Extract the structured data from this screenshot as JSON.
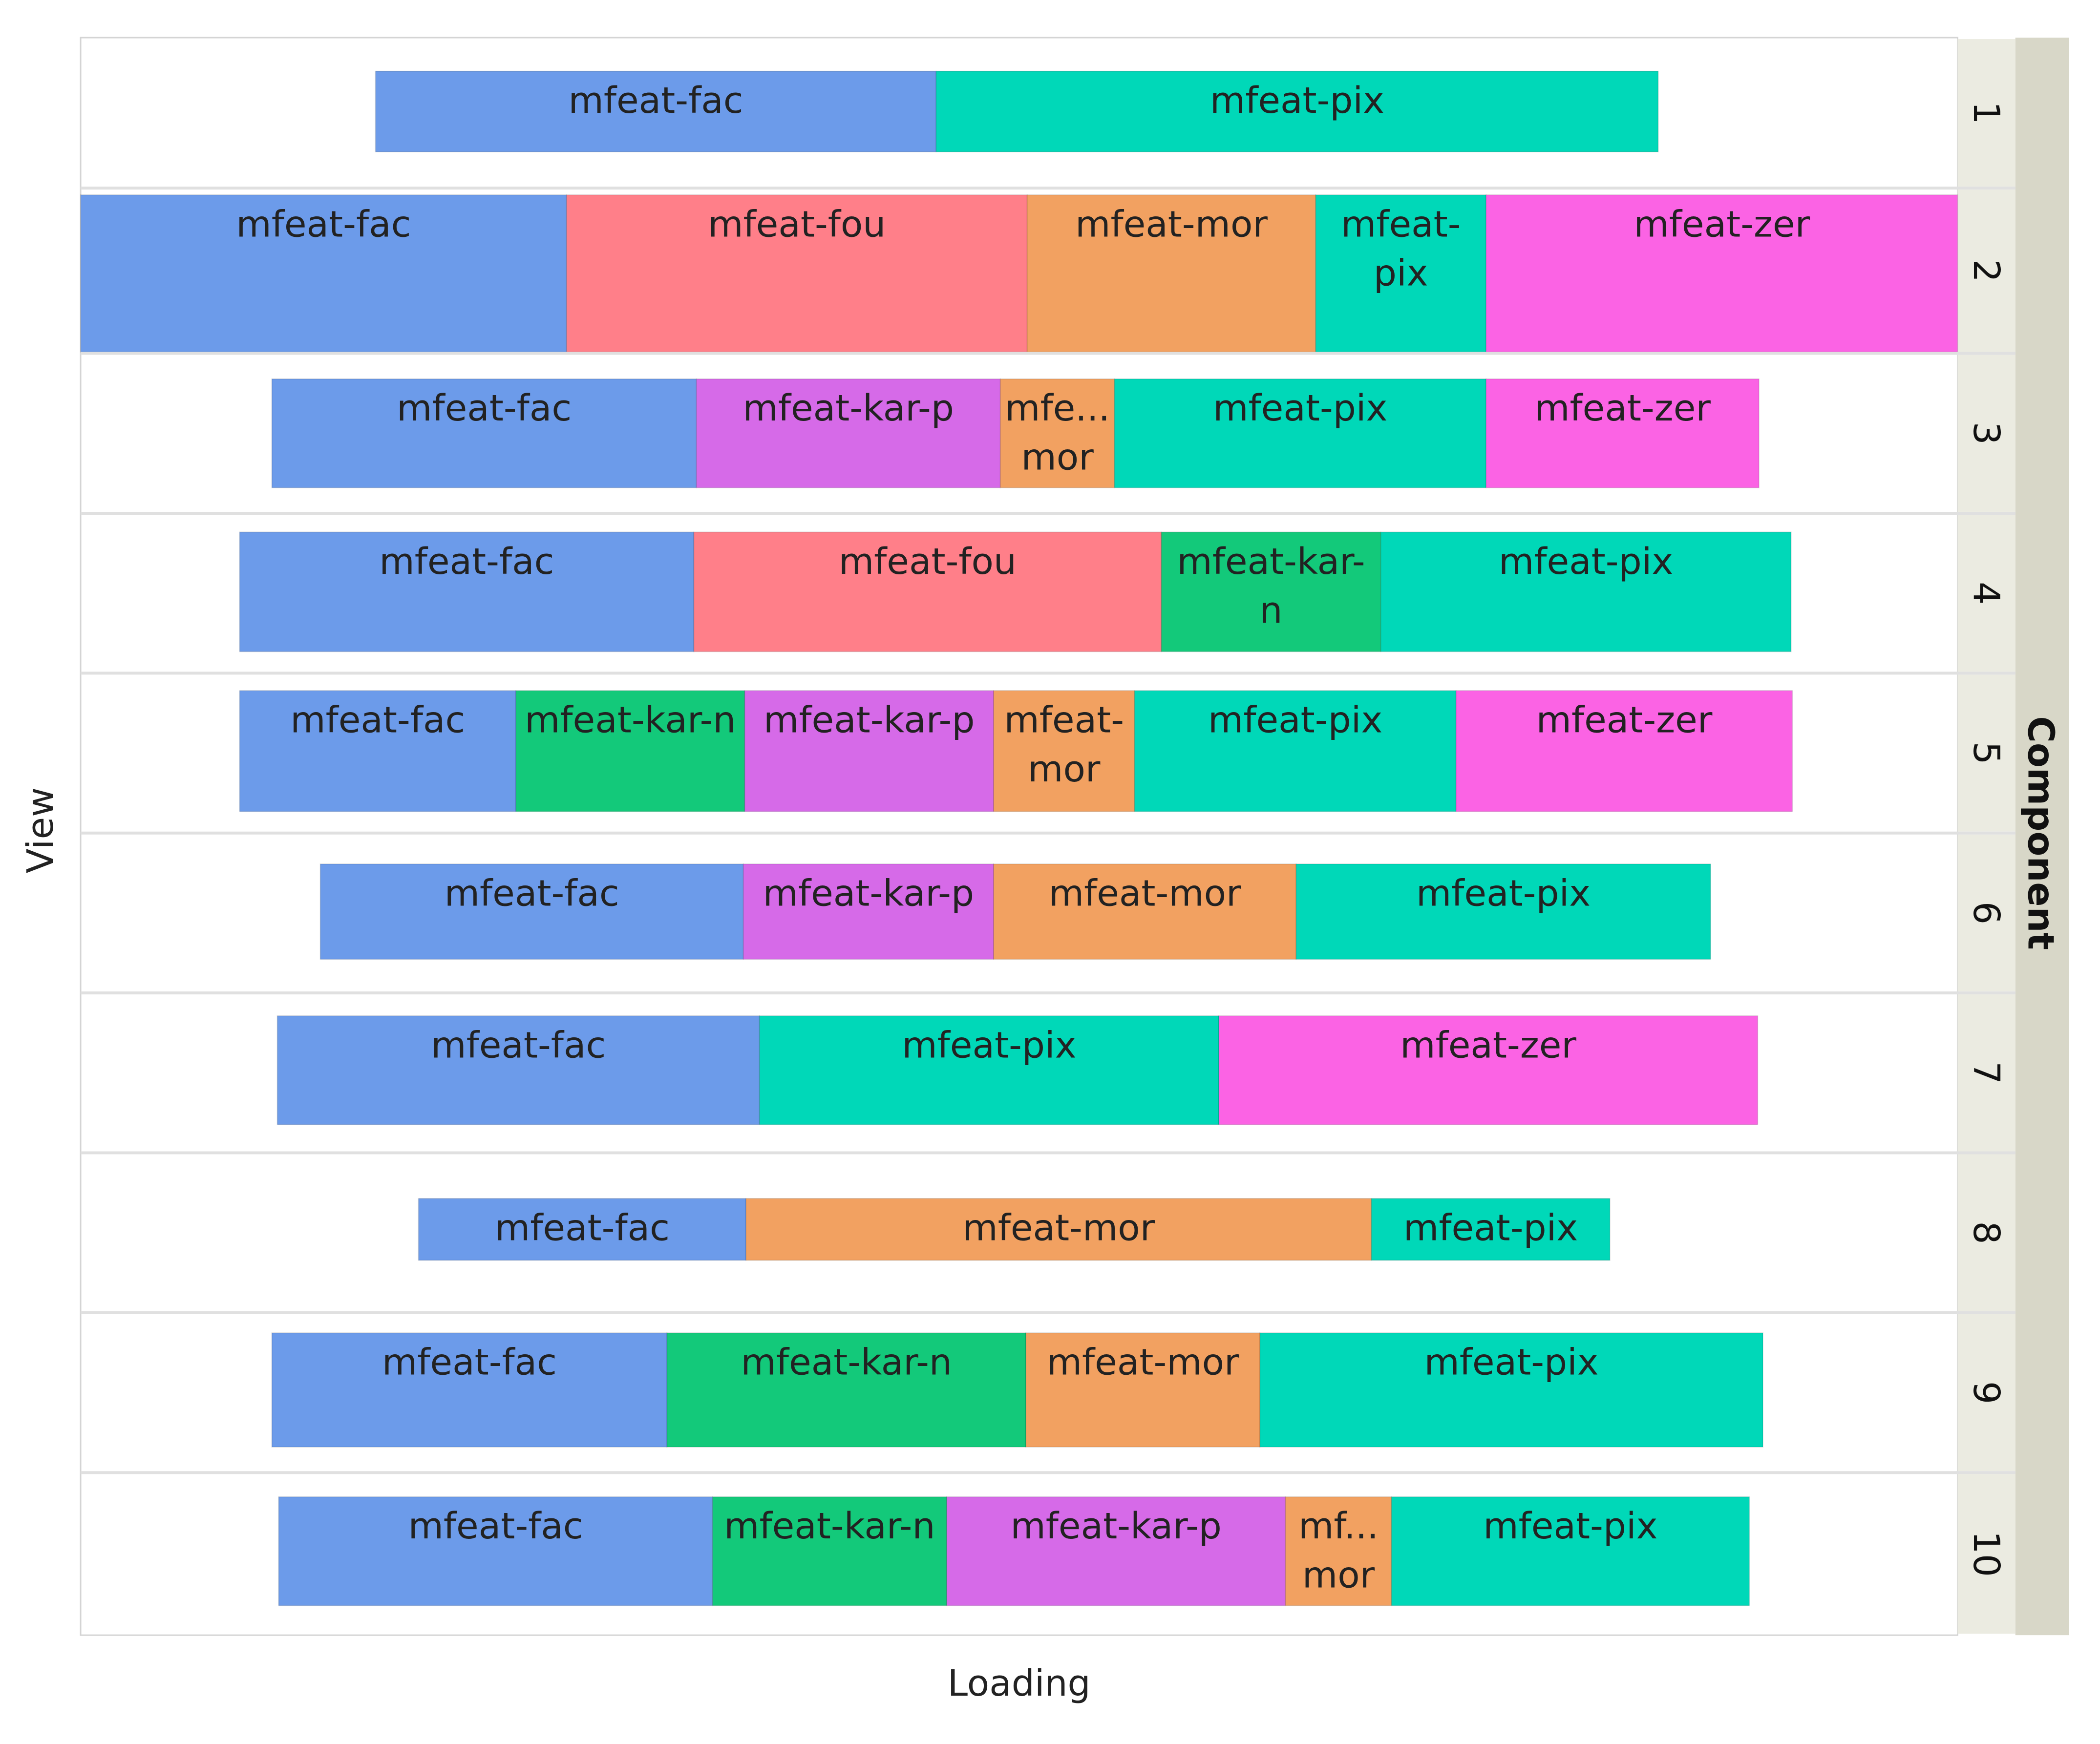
{
  "chart_data": {
    "type": "bar",
    "subtype": "horizontal-stacked-faceted",
    "xlabel": "Loading",
    "ylabel": "View",
    "facet_label": "Component",
    "facets": [
      "1",
      "2",
      "3",
      "4",
      "5",
      "6",
      "7",
      "8",
      "9",
      "10"
    ],
    "colors": {
      "mfeat-fac": "#6c9bea",
      "mfeat-fou": "#ff7f89",
      "mfeat-kar-n": "#13c97a",
      "mfeat-kar-p": "#d66ae8",
      "mfeat-mor": "#f2a161",
      "mfeat-pix": "#00d8b8",
      "mfeat-zer": "#fb63e4"
    },
    "rows": [
      {
        "component": "1",
        "segments": [
          {
            "view": "mfeat-fac",
            "label": "mfeat-fac",
            "start": 0.1571,
            "end": 0.4558
          },
          {
            "view": "mfeat-pix",
            "label": "mfeat-pix",
            "start": 0.4558,
            "end": 0.8405
          }
        ]
      },
      {
        "component": "2",
        "segments": [
          {
            "view": "mfeat-fac",
            "label": "mfeat-fac",
            "start": 0.0,
            "end": 0.2589
          },
          {
            "view": "mfeat-fou",
            "label": "mfeat-fou",
            "start": 0.2589,
            "end": 0.5043
          },
          {
            "view": "mfeat-mor",
            "label": "mfeat-mor",
            "start": 0.5043,
            "end": 0.658
          },
          {
            "view": "mfeat-pix",
            "label": [
              "mfeat-",
              "pix"
            ],
            "start": 0.658,
            "end": 0.7488
          },
          {
            "view": "mfeat-zer",
            "label": "mfeat-zer",
            "start": 0.7488,
            "end": 1.0
          }
        ]
      },
      {
        "component": "3",
        "segments": [
          {
            "view": "mfeat-fac",
            "label": "mfeat-fac",
            "start": 0.1019,
            "end": 0.3281
          },
          {
            "view": "mfeat-kar-p",
            "label": "mfeat-kar-p",
            "start": 0.3281,
            "end": 0.49
          },
          {
            "view": "mfeat-mor",
            "label": [
              "mfe...",
              "mor"
            ],
            "start": 0.49,
            "end": 0.5508
          },
          {
            "view": "mfeat-pix",
            "label": "mfeat-pix",
            "start": 0.5508,
            "end": 0.7488
          },
          {
            "view": "mfeat-zer",
            "label": "mfeat-zer",
            "start": 0.7488,
            "end": 0.8942
          }
        ]
      },
      {
        "component": "4",
        "segments": [
          {
            "view": "mfeat-fac",
            "label": "mfeat-fac",
            "start": 0.0847,
            "end": 0.3267
          },
          {
            "view": "mfeat-fou",
            "label": "mfeat-fou",
            "start": 0.3267,
            "end": 0.5758
          },
          {
            "view": "mfeat-kar-n",
            "label": [
              "mfeat-kar-",
              "n"
            ],
            "start": 0.5758,
            "end": 0.6927
          },
          {
            "view": "mfeat-pix",
            "label": "mfeat-pix",
            "start": 0.6927,
            "end": 0.9113
          }
        ]
      },
      {
        "component": "5",
        "segments": [
          {
            "view": "mfeat-fac",
            "label": "mfeat-fac",
            "start": 0.0847,
            "end": 0.2319
          },
          {
            "view": "mfeat-kar-n",
            "label": "mfeat-kar-n",
            "start": 0.2319,
            "end": 0.3538
          },
          {
            "view": "mfeat-kar-p",
            "label": "mfeat-kar-p",
            "start": 0.3538,
            "end": 0.4864
          },
          {
            "view": "mfeat-mor",
            "label": [
              "mfeat-",
              "mor"
            ],
            "start": 0.4864,
            "end": 0.5615
          },
          {
            "view": "mfeat-pix",
            "label": "mfeat-pix",
            "start": 0.5615,
            "end": 0.7328
          },
          {
            "view": "mfeat-zer",
            "label": "mfeat-zer",
            "start": 0.7328,
            "end": 0.912
          }
        ]
      },
      {
        "component": "6",
        "segments": [
          {
            "view": "mfeat-fac",
            "label": "mfeat-fac",
            "start": 0.1277,
            "end": 0.3531
          },
          {
            "view": "mfeat-kar-p",
            "label": "mfeat-kar-p",
            "start": 0.3531,
            "end": 0.4864
          },
          {
            "view": "mfeat-mor",
            "label": "mfeat-mor",
            "start": 0.4864,
            "end": 0.6476
          },
          {
            "view": "mfeat-pix",
            "label": "mfeat-pix",
            "start": 0.6476,
            "end": 0.8684
          }
        ]
      },
      {
        "component": "7",
        "segments": [
          {
            "view": "mfeat-fac",
            "label": "mfeat-fac",
            "start": 0.1048,
            "end": 0.3617
          },
          {
            "view": "mfeat-pix",
            "label": "mfeat-pix",
            "start": 0.3617,
            "end": 0.6064
          },
          {
            "view": "mfeat-zer",
            "label": "mfeat-zer",
            "start": 0.6064,
            "end": 0.8935
          }
        ]
      },
      {
        "component": "8",
        "segments": [
          {
            "view": "mfeat-fac",
            "label": "mfeat-fac",
            "start": 0.18,
            "end": 0.3545
          },
          {
            "view": "mfeat-mor",
            "label": "mfeat-mor",
            "start": 0.3545,
            "end": 0.6877
          },
          {
            "view": "mfeat-pix",
            "label": "mfeat-pix",
            "start": 0.6877,
            "end": 0.8148
          }
        ]
      },
      {
        "component": "9",
        "segments": [
          {
            "view": "mfeat-fac",
            "label": "mfeat-fac",
            "start": 0.1019,
            "end": 0.3124
          },
          {
            "view": "mfeat-kar-n",
            "label": "mfeat-kar-n",
            "start": 0.3124,
            "end": 0.5036
          },
          {
            "view": "mfeat-mor",
            "label": "mfeat-mor",
            "start": 0.5036,
            "end": 0.6283
          },
          {
            "view": "mfeat-pix",
            "label": "mfeat-pix",
            "start": 0.6283,
            "end": 0.8963
          }
        ]
      },
      {
        "component": "10",
        "segments": [
          {
            "view": "mfeat-fac",
            "label": "mfeat-fac",
            "start": 0.1055,
            "end": 0.3367
          },
          {
            "view": "mfeat-kar-n",
            "label": "mfeat-kar-n",
            "start": 0.3367,
            "end": 0.4614
          },
          {
            "view": "mfeat-kar-p",
            "label": "mfeat-kar-p",
            "start": 0.4614,
            "end": 0.6419
          },
          {
            "view": "mfeat-mor",
            "label": [
              "mf...",
              "mor"
            ],
            "start": 0.6419,
            "end": 0.6984
          },
          {
            "view": "mfeat-pix",
            "label": "mfeat-pix",
            "start": 0.6984,
            "end": 0.8891
          }
        ]
      }
    ]
  }
}
